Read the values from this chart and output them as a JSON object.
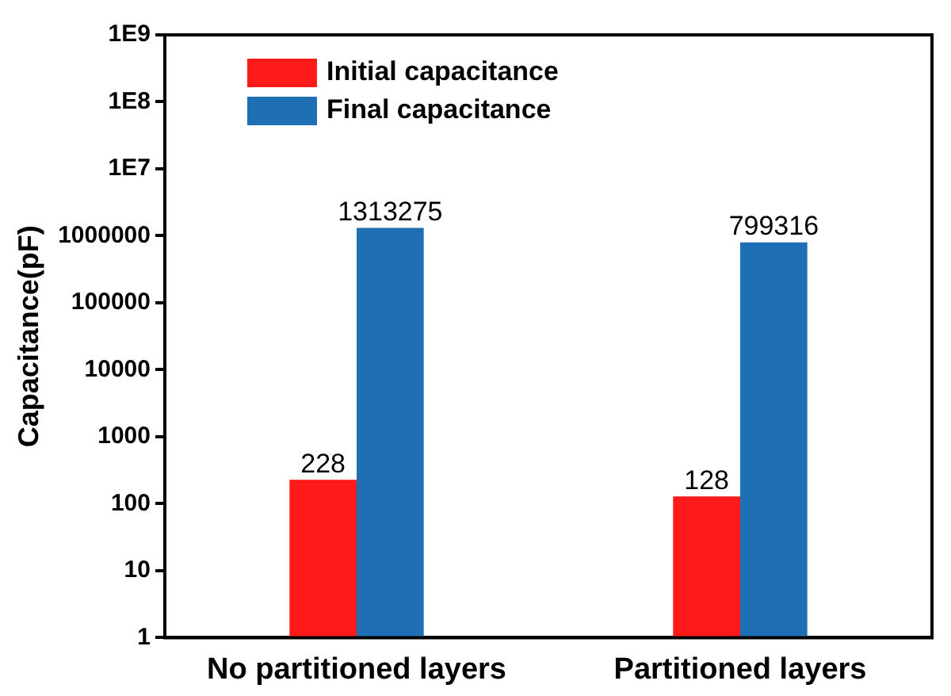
{
  "chart_data": {
    "type": "bar",
    "ylabel": "Capacitance(pF)",
    "categories": [
      "No partitioned layers",
      "Partitioned layers"
    ],
    "series": [
      {
        "name": "Initial capacitance",
        "color": "#ff1a1a",
        "values": [
          228,
          128
        ]
      },
      {
        "name": "Final capacitance",
        "color": "#1f6fb5",
        "values": [
          1313275,
          799316
        ]
      }
    ],
    "log": "y",
    "ylim": [
      1,
      1000000000
    ],
    "yticks": [
      1,
      10,
      100,
      1000,
      10000,
      100000,
      1000000,
      {
        "value": 10000000,
        "label": "1E7"
      },
      {
        "value": 100000000,
        "label": "1E8"
      },
      {
        "value": 1000000000,
        "label": "1E9"
      }
    ],
    "data_labels": true,
    "legend": "top left",
    "grid": false
  }
}
